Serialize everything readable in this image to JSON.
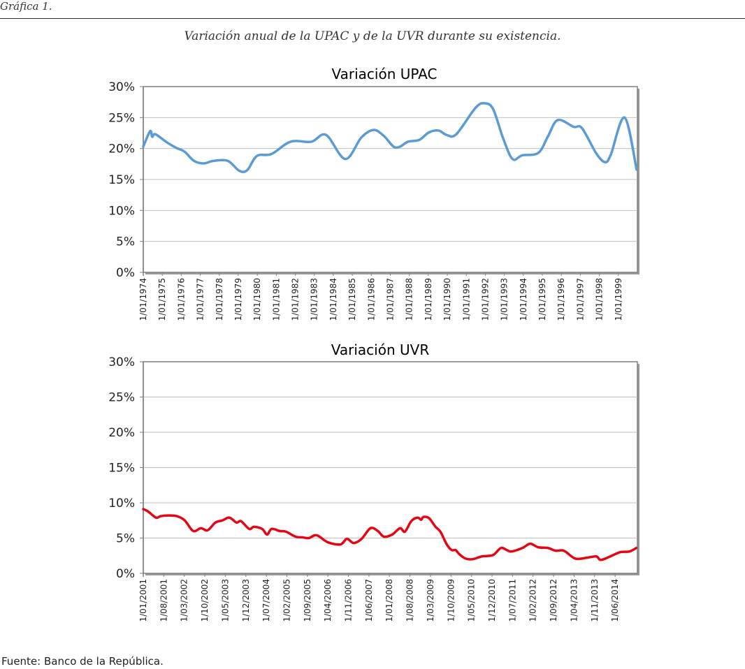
{
  "header": {
    "figure_label": "Gráfica 1.",
    "subtitle": "Variación anual de la UPAC y de la UVR durante su existencia."
  },
  "footer": {
    "source": "Fuente: Banco de la República."
  },
  "chart_data": [
    {
      "type": "line",
      "title": "Variación UPAC",
      "color": "#5b9bd5",
      "ylim": [
        0,
        30
      ],
      "yticks": [
        "0%",
        "5%",
        "10%",
        "15%",
        "20%",
        "25%",
        "30%"
      ],
      "xlim": [
        1974,
        2000
      ],
      "xtick_positions": [
        1974,
        1975,
        1976,
        1977,
        1978,
        1979,
        1980,
        1981,
        1982,
        1983,
        1984,
        1985,
        1986,
        1987,
        1988,
        1989,
        1990,
        1991,
        1992,
        1993,
        1994,
        1995,
        1996,
        1997,
        1998,
        1999
      ],
      "xticks": [
        "1/01/1974",
        "1/01/1975",
        "1/01/1976",
        "1/01/1977",
        "1/01/1978",
        "1/01/1979",
        "1/01/1980",
        "1/01/1981",
        "1/01/1982",
        "1/01/1983",
        "1/01/1984",
        "1/01/1985",
        "1/01/1986",
        "1/01/1987",
        "1/01/1988",
        "1/01/1989",
        "1/01/1990",
        "1/01/1991",
        "1/01/1992",
        "1/01/1993",
        "1/01/1994",
        "1/01/1995",
        "1/01/1996",
        "1/01/1997",
        "1/01/1998",
        "1/01/1999"
      ],
      "grid": true,
      "x": [
        1974.0,
        1974.36,
        1974.47,
        1974.64,
        1975.24,
        1975.74,
        1976.17,
        1976.67,
        1977.18,
        1977.69,
        1978.45,
        1979.05,
        1979.47,
        1979.98,
        1980.74,
        1981.75,
        1982.85,
        1983.62,
        1984.63,
        1985.48,
        1986.12,
        1986.67,
        1987.17,
        1987.51,
        1987.93,
        1988.53,
        1989.03,
        1989.54,
        1989.96,
        1990.47,
        1991.49,
        1991.99,
        1992.42,
        1992.93,
        1993.43,
        1993.94,
        1994.79,
        1995.3,
        1995.81,
        1996.65,
        1997.08,
        1997.84,
        1998.3,
        1998.6,
        1999.33,
        1999.96
      ],
      "y": [
        20.3,
        22.8,
        21.9,
        22.3,
        21.0,
        20.1,
        19.5,
        18.0,
        17.6,
        18.0,
        18.0,
        16.4,
        16.5,
        18.8,
        19.1,
        21.1,
        21.1,
        22.2,
        18.3,
        21.8,
        23.0,
        22.0,
        20.3,
        20.3,
        21.1,
        21.4,
        22.6,
        22.9,
        22.2,
        22.3,
        26.6,
        27.3,
        26.3,
        21.7,
        18.3,
        18.9,
        19.3,
        22.0,
        24.6,
        23.5,
        23.3,
        19.2,
        17.8,
        19.0,
        25.0,
        16.6
      ]
    },
    {
      "type": "line",
      "title": "Variación UVR",
      "color": "#e30613",
      "ylim": [
        0,
        30
      ],
      "yticks": [
        "0%",
        "5%",
        "10%",
        "15%",
        "20%",
        "25%",
        "30%"
      ],
      "xlim": [
        2001,
        2015.05
      ],
      "xtick_positions": [
        2001,
        2001.583,
        2002.167,
        2002.75,
        2003.333,
        2003.917,
        2004.5,
        2005.083,
        2005.667,
        2006.25,
        2006.833,
        2007.417,
        2008,
        2008.583,
        2009.167,
        2009.75,
        2010.333,
        2010.917,
        2011.5,
        2012.083,
        2012.667,
        2013.25,
        2013.833,
        2014.417
      ],
      "xticks": [
        "1/01/2001",
        "1/08/2001",
        "1/03/2002",
        "1/10/2002",
        "1/05/2003",
        "1/12/2003",
        "1/07/2004",
        "1/02/2005",
        "1/09/2005",
        "1/04/2006",
        "1/11/2006",
        "1/06/2007",
        "1/01/2008",
        "1/08/2008",
        "1/03/2009",
        "1/10/2009",
        "1/05/2010",
        "1/12/2010",
        "1/07/2011",
        "1/02/2012",
        "1/09/2012",
        "1/04/2013",
        "1/11/2013",
        "1/06/2014"
      ],
      "grid": true,
      "x": [
        2001.0,
        2001.13,
        2001.36,
        2001.49,
        2001.72,
        2001.96,
        2002.18,
        2002.42,
        2002.64,
        2002.83,
        2003.05,
        2003.25,
        2003.45,
        2003.65,
        2003.78,
        2004.01,
        2004.15,
        2004.38,
        2004.52,
        2004.65,
        2004.88,
        2005.06,
        2005.33,
        2005.53,
        2005.71,
        2005.93,
        2006.25,
        2006.61,
        2006.79,
        2006.98,
        2007.21,
        2007.46,
        2007.67,
        2007.84,
        2008.08,
        2008.3,
        2008.44,
        2008.62,
        2008.8,
        2008.9,
        2008.97,
        2009.13,
        2009.31,
        2009.45,
        2009.63,
        2009.77,
        2009.88,
        2009.99,
        2010.16,
        2010.36,
        2010.63,
        2010.95,
        2011.18,
        2011.45,
        2011.78,
        2012.0,
        2012.23,
        2012.5,
        2012.73,
        2012.96,
        2013.28,
        2013.6,
        2013.88,
        2014.01,
        2014.28,
        2014.56,
        2014.83,
        2015.02
      ],
      "y": [
        9.1,
        8.8,
        7.9,
        8.1,
        8.2,
        8.1,
        7.5,
        6.0,
        6.4,
        6.1,
        7.2,
        7.5,
        7.9,
        7.2,
        7.4,
        6.3,
        6.6,
        6.3,
        5.5,
        6.3,
        6.0,
        5.9,
        5.2,
        5.1,
        5.0,
        5.4,
        4.4,
        4.1,
        4.9,
        4.3,
        4.9,
        6.4,
        6.0,
        5.2,
        5.5,
        6.4,
        5.9,
        7.4,
        7.9,
        7.6,
        8.0,
        7.8,
        6.6,
        5.9,
        4.1,
        3.3,
        3.3,
        2.7,
        2.1,
        2.0,
        2.4,
        2.6,
        3.6,
        3.1,
        3.6,
        4.2,
        3.7,
        3.6,
        3.2,
        3.2,
        2.1,
        2.2,
        2.4,
        1.9,
        2.4,
        3.0,
        3.1,
        3.6
      ]
    }
  ]
}
